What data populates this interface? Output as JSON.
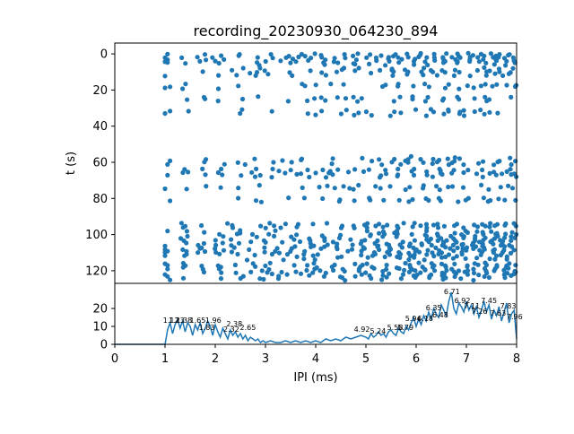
{
  "chart_data": {
    "type": "scatter",
    "title": "recording_20230930_064230_894",
    "colors": {
      "series": "#1f77b4",
      "axes": "#000000",
      "background": "#ffffff"
    },
    "grid": false,
    "top_panel": {
      "type": "scatter",
      "ylabel": "t (s)",
      "ylim": [
        127,
        -6
      ],
      "xlim": [
        0,
        8
      ],
      "yticks": [
        0,
        20,
        40,
        60,
        80,
        100,
        120
      ],
      "ytick_labels": [
        "0",
        "20",
        "40",
        "60",
        "80",
        "100",
        "120"
      ],
      "trial_rows": [
        {
          "t": 0,
          "start": 1.05,
          "density": 0.55
        },
        {
          "t": 1,
          "start": 1.1,
          "density": 0.5
        },
        {
          "t": 2,
          "start": 1.0,
          "density": 0.7
        },
        {
          "t": 3,
          "start": 1.05,
          "density": 0.45
        },
        {
          "t": 4,
          "start": 1.0,
          "density": 0.6
        },
        {
          "t": 5,
          "start": 1.05,
          "density": 0.4
        },
        {
          "t": 6,
          "start": 1.1,
          "density": 0.45
        },
        {
          "t": 8,
          "start": 1.05,
          "density": 0.35
        },
        {
          "t": 9,
          "start": 1.0,
          "density": 0.55
        },
        {
          "t": 10,
          "start": 1.05,
          "density": 0.5
        },
        {
          "t": 11,
          "start": 1.1,
          "density": 0.3
        },
        {
          "t": 12,
          "start": 1.0,
          "density": 0.35
        },
        {
          "t": 17,
          "start": 1.05,
          "density": 0.5
        },
        {
          "t": 18,
          "start": 1.1,
          "density": 0.45
        },
        {
          "t": 19,
          "start": 1.0,
          "density": 0.4
        },
        {
          "t": 24,
          "start": 1.05,
          "density": 0.45
        },
        {
          "t": 25,
          "start": 1.1,
          "density": 0.4
        },
        {
          "t": 26,
          "start": 1.0,
          "density": 0.35
        },
        {
          "t": 31,
          "start": 1.05,
          "density": 0.35
        },
        {
          "t": 32,
          "start": 1.1,
          "density": 0.45
        },
        {
          "t": 33,
          "start": 1.0,
          "density": 0.4
        },
        {
          "t": 34,
          "start": 2.8,
          "density": 0.2
        },
        {
          "t": 57,
          "start": 5.9,
          "density": 0.05
        },
        {
          "t": 58,
          "start": 1.05,
          "density": 0.45
        },
        {
          "t": 59,
          "start": 1.1,
          "density": 0.35
        },
        {
          "t": 60,
          "start": 1.0,
          "density": 0.4
        },
        {
          "t": 61,
          "start": 1.05,
          "density": 0.3
        },
        {
          "t": 64,
          "start": 1.05,
          "density": 0.45
        },
        {
          "t": 65,
          "start": 1.1,
          "density": 0.4
        },
        {
          "t": 66,
          "start": 1.0,
          "density": 0.5
        },
        {
          "t": 67,
          "start": 1.05,
          "density": 0.4
        },
        {
          "t": 68,
          "start": 1.0,
          "density": 0.3
        },
        {
          "t": 73,
          "start": 1.05,
          "density": 0.4
        },
        {
          "t": 74,
          "start": 1.1,
          "density": 0.45
        },
        {
          "t": 75,
          "start": 1.0,
          "density": 0.3
        },
        {
          "t": 80,
          "start": 1.05,
          "density": 0.4
        },
        {
          "t": 81,
          "start": 1.1,
          "density": 0.45
        },
        {
          "t": 82,
          "start": 1.0,
          "density": 0.3
        },
        {
          "t": 94,
          "start": 1.0,
          "density": 0.65
        },
        {
          "t": 95,
          "start": 1.05,
          "density": 0.6
        },
        {
          "t": 96,
          "start": 1.0,
          "density": 0.5
        },
        {
          "t": 98,
          "start": 1.05,
          "density": 0.45
        },
        {
          "t": 99,
          "start": 1.1,
          "density": 0.4
        },
        {
          "t": 100,
          "start": 1.0,
          "density": 0.55
        },
        {
          "t": 101,
          "start": 1.05,
          "density": 0.5
        },
        {
          "t": 102,
          "start": 1.0,
          "density": 0.55
        },
        {
          "t": 103,
          "start": 1.05,
          "density": 0.6
        },
        {
          "t": 104,
          "start": 1.0,
          "density": 0.5
        },
        {
          "t": 105,
          "start": 1.05,
          "density": 0.55
        },
        {
          "t": 106,
          "start": 1.0,
          "density": 0.65
        },
        {
          "t": 107,
          "start": 1.05,
          "density": 0.6
        },
        {
          "t": 108,
          "start": 1.0,
          "density": 0.55
        },
        {
          "t": 109,
          "start": 1.05,
          "density": 0.5
        },
        {
          "t": 110,
          "start": 1.0,
          "density": 0.6
        },
        {
          "t": 111,
          "start": 1.05,
          "density": 0.55
        },
        {
          "t": 112,
          "start": 1.0,
          "density": 0.5
        },
        {
          "t": 113,
          "start": 1.05,
          "density": 0.45
        },
        {
          "t": 114,
          "start": 1.1,
          "density": 0.4
        },
        {
          "t": 116,
          "start": 1.0,
          "density": 0.55
        },
        {
          "t": 117,
          "start": 1.05,
          "density": 0.6
        },
        {
          "t": 118,
          "start": 1.0,
          "density": 0.55
        },
        {
          "t": 119,
          "start": 1.05,
          "density": 0.5
        },
        {
          "t": 120,
          "start": 1.0,
          "density": 0.6
        },
        {
          "t": 121,
          "start": 1.05,
          "density": 0.55
        },
        {
          "t": 122,
          "start": 1.0,
          "density": 0.5
        },
        {
          "t": 123,
          "start": 1.05,
          "density": 0.45
        },
        {
          "t": 124,
          "start": 1.0,
          "density": 0.4
        },
        {
          "t": 125,
          "start": 1.1,
          "density": 0.35
        }
      ]
    },
    "bottom_panel": {
      "type": "line",
      "xlabel": "IPI (ms)",
      "xlim": [
        0,
        8
      ],
      "ylim": [
        0,
        34
      ],
      "xticks": [
        0,
        1,
        2,
        3,
        4,
        5,
        6,
        7,
        8
      ],
      "xtick_labels": [
        "0",
        "1",
        "2",
        "3",
        "4",
        "5",
        "6",
        "7",
        "8"
      ],
      "yticks": [
        0,
        10,
        20
      ],
      "ytick_labels": [
        "0",
        "10",
        "20"
      ],
      "curve_x": [
        0,
        1.0,
        1.02,
        1.05,
        1.1,
        1.15,
        1.2,
        1.25,
        1.3,
        1.35,
        1.4,
        1.45,
        1.5,
        1.55,
        1.6,
        1.65,
        1.7,
        1.75,
        1.8,
        1.85,
        1.9,
        1.95,
        2.0,
        2.05,
        2.1,
        2.15,
        2.2,
        2.25,
        2.3,
        2.35,
        2.4,
        2.45,
        2.5,
        2.55,
        2.6,
        2.65,
        2.7,
        2.75,
        2.8,
        2.85,
        2.9,
        2.95,
        3.0,
        3.1,
        3.2,
        3.3,
        3.4,
        3.5,
        3.6,
        3.7,
        3.8,
        3.9,
        4.0,
        4.1,
        4.2,
        4.3,
        4.4,
        4.5,
        4.6,
        4.7,
        4.8,
        4.9,
        5.0,
        5.05,
        5.1,
        5.15,
        5.2,
        5.25,
        5.3,
        5.35,
        5.4,
        5.45,
        5.5,
        5.55,
        5.6,
        5.65,
        5.7,
        5.75,
        5.8,
        5.85,
        5.9,
        5.95,
        6.0,
        6.05,
        6.1,
        6.15,
        6.2,
        6.25,
        6.3,
        6.35,
        6.4,
        6.45,
        6.5,
        6.55,
        6.6,
        6.65,
        6.7,
        6.75,
        6.8,
        6.85,
        6.9,
        6.95,
        7.0,
        7.05,
        7.1,
        7.15,
        7.2,
        7.25,
        7.3,
        7.35,
        7.4,
        7.45,
        7.5,
        7.55,
        7.6,
        7.65,
        7.7,
        7.75,
        7.8,
        7.85,
        7.9,
        7.95,
        8.0
      ],
      "curve_y": [
        0,
        0,
        3,
        8,
        12,
        6,
        11,
        14,
        9,
        13,
        7,
        12,
        10,
        5,
        11,
        8,
        12,
        6,
        9,
        13,
        10,
        5,
        11,
        7,
        4,
        9,
        6,
        3,
        8,
        5,
        7,
        4,
        6,
        3,
        5,
        2,
        4,
        3,
        2,
        3,
        1,
        2,
        1,
        2,
        1,
        1,
        2,
        1,
        2,
        1,
        2,
        1,
        2,
        1,
        3,
        2,
        3,
        2,
        4,
        3,
        4,
        5,
        4,
        3,
        6,
        4,
        5,
        7,
        5,
        6,
        4,
        7,
        8,
        6,
        5,
        9,
        7,
        6,
        10,
        8,
        12,
        15,
        10,
        14,
        11,
        16,
        13,
        18,
        14,
        20,
        17,
        15,
        22,
        19,
        16,
        24,
        29,
        20,
        17,
        23,
        21,
        18,
        24,
        19,
        22,
        17,
        21,
        15,
        19,
        24,
        18,
        22,
        14,
        19,
        16,
        21,
        13,
        18,
        23,
        12,
        17,
        19,
        3
      ],
      "peak_labels": [
        {
          "x": 1.12,
          "y": 11,
          "label": "1.12"
        },
        {
          "x": 1.23,
          "y": 11,
          "label": "1.23"
        },
        {
          "x": 1.38,
          "y": 11,
          "label": "1.38"
        },
        {
          "x": 1.65,
          "y": 11,
          "label": "1.65"
        },
        {
          "x": 1.96,
          "y": 11,
          "label": "1.96"
        },
        {
          "x": 1.83,
          "y": 7,
          "label": "1.83"
        },
        {
          "x": 2.38,
          "y": 9,
          "label": "2.38"
        },
        {
          "x": 2.32,
          "y": 6,
          "label": "2.32"
        },
        {
          "x": 2.65,
          "y": 7,
          "label": "2.65"
        },
        {
          "x": 4.92,
          "y": 6,
          "label": "4.92"
        },
        {
          "x": 5.24,
          "y": 5,
          "label": "5.24"
        },
        {
          "x": 5.58,
          "y": 7,
          "label": "5.58"
        },
        {
          "x": 5.79,
          "y": 7,
          "label": "5.79"
        },
        {
          "x": 5.94,
          "y": 12,
          "label": "5.94"
        },
        {
          "x": 6.18,
          "y": 12,
          "label": "6.18"
        },
        {
          "x": 6.35,
          "y": 18,
          "label": "6.35"
        },
        {
          "x": 6.48,
          "y": 14,
          "label": "6.48"
        },
        {
          "x": 6.71,
          "y": 27,
          "label": "6.71"
        },
        {
          "x": 6.92,
          "y": 22,
          "label": "6.92"
        },
        {
          "x": 7.11,
          "y": 19,
          "label": "7.11"
        },
        {
          "x": 7.26,
          "y": 16,
          "label": "7.26"
        },
        {
          "x": 7.45,
          "y": 22,
          "label": "7.45"
        },
        {
          "x": 7.63,
          "y": 15,
          "label": "7.63"
        },
        {
          "x": 7.83,
          "y": 19,
          "label": "7.83"
        },
        {
          "x": 7.96,
          "y": 13,
          "label": "7.96"
        }
      ]
    }
  }
}
